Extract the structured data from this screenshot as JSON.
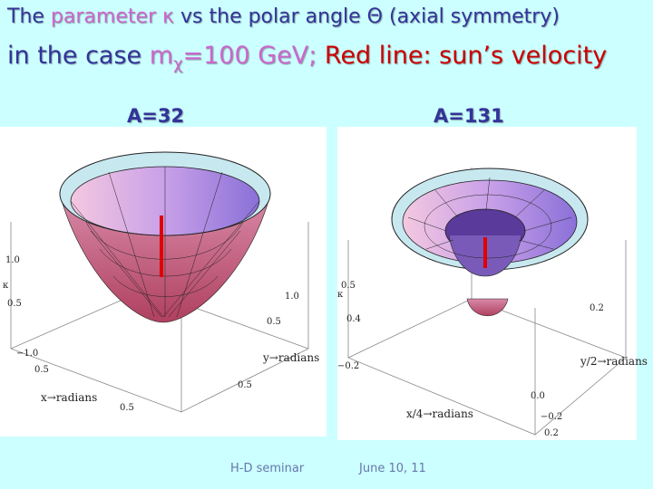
{
  "header": {
    "line1": [
      "The ",
      "parameter κ",
      " vs the polar angle Θ (axial symmetry)"
    ],
    "line2": [
      "in the case ",
      "m",
      "χ",
      "=100 GeV;",
      " Red line: sun’s velocity"
    ]
  },
  "panels": [
    {
      "label": "A=32",
      "tick_labels": [
        "1.0",
        "κ",
        "0.5",
        "−1.0",
        "0.5",
        "x→radians",
        "0.5",
        "1.0",
        "0.5",
        "y→radians",
        "0.5"
      ]
    },
    {
      "label": "A=131",
      "tick_labels": [
        "0.5",
        "κ",
        "0.4",
        "0.2",
        "−0.2",
        "y/2→radians",
        "0.0",
        "x/4→radians",
        "−0.2",
        "0.2"
      ]
    }
  ],
  "footer": {
    "left": "H-D seminar",
    "right": "June 10, 11"
  }
}
